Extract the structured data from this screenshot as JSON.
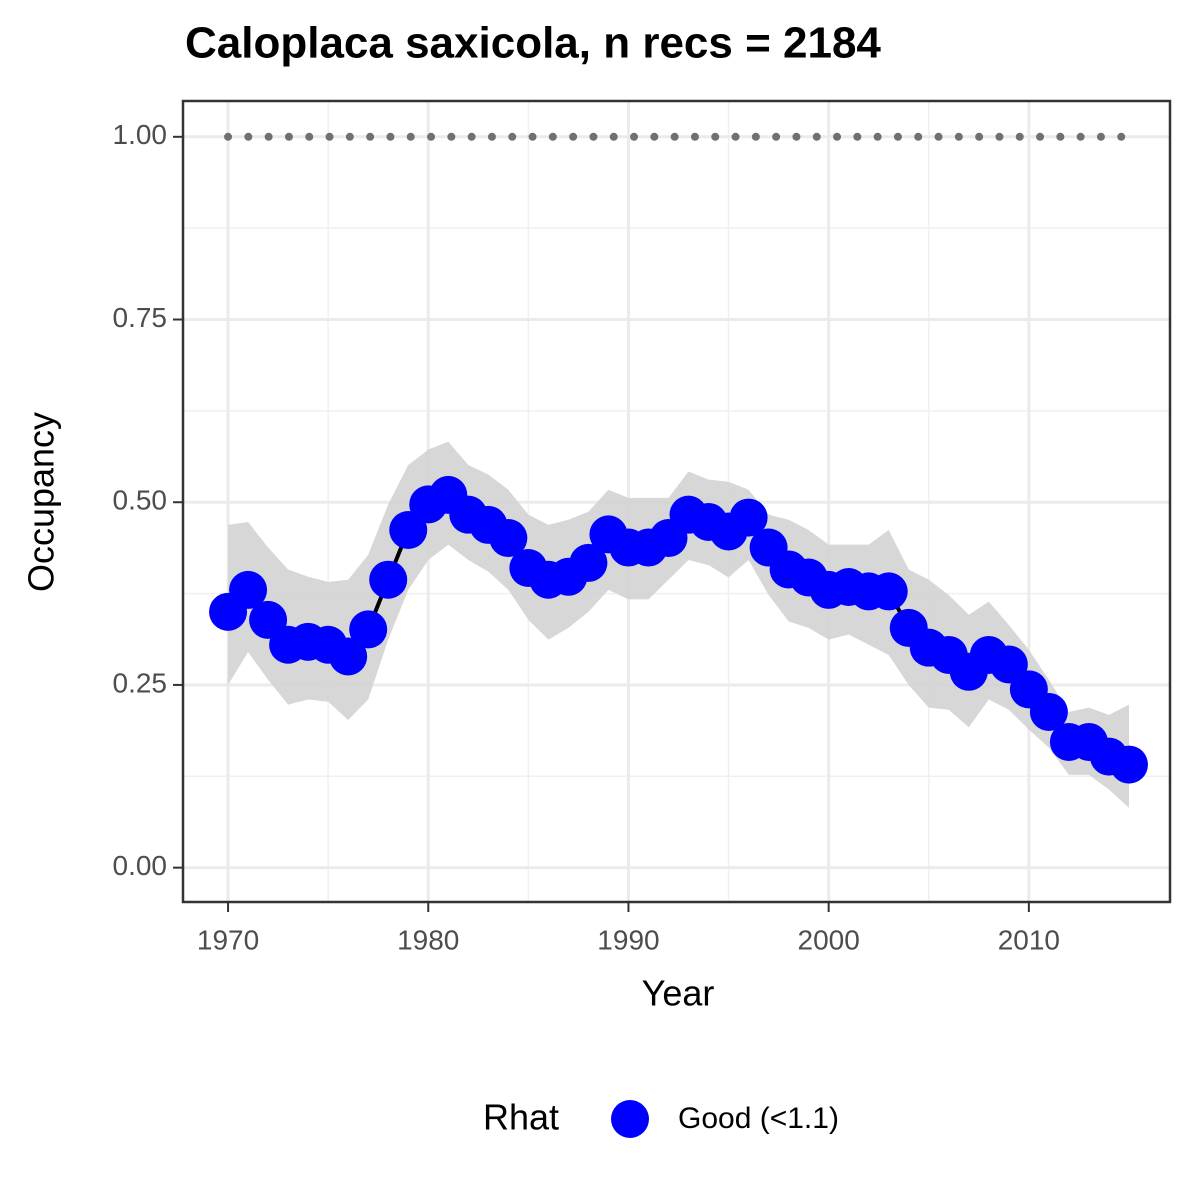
{
  "chart_data": {
    "type": "line",
    "title": "Caloplaca saxicola, n recs = 2184",
    "x_label": "Year",
    "y_label": "Occupancy",
    "legend_title": "Rhat",
    "x": [
      1970,
      1971,
      1972,
      1973,
      1974,
      1975,
      1976,
      1977,
      1978,
      1979,
      1980,
      1981,
      1982,
      1983,
      1984,
      1985,
      1986,
      1987,
      1988,
      1989,
      1990,
      1991,
      1992,
      1993,
      1994,
      1995,
      1996,
      1997,
      1998,
      1999,
      2000,
      2001,
      2002,
      2003,
      2004,
      2005,
      2006,
      2007,
      2008,
      2009,
      2010,
      2011,
      2012,
      2013,
      2014,
      2015
    ],
    "series": [
      {
        "name": "Good (<1.1)",
        "color": "#0000ff",
        "values": [
          0.35,
          0.38,
          0.339,
          0.305,
          0.309,
          0.305,
          0.289,
          0.326,
          0.394,
          0.462,
          0.497,
          0.51,
          0.483,
          0.469,
          0.451,
          0.41,
          0.394,
          0.398,
          0.417,
          0.456,
          0.438,
          0.438,
          0.451,
          0.483,
          0.473,
          0.46,
          0.479,
          0.438,
          0.408,
          0.397,
          0.38,
          0.384,
          0.378,
          0.378,
          0.328,
          0.301,
          0.291,
          0.268,
          0.291,
          0.278,
          0.244,
          0.213,
          0.172,
          0.172,
          0.152,
          0.141
        ],
        "lower": [
          0.25,
          0.295,
          0.257,
          0.223,
          0.23,
          0.227,
          0.202,
          0.23,
          0.312,
          0.38,
          0.421,
          0.442,
          0.421,
          0.405,
          0.38,
          0.339,
          0.312,
          0.328,
          0.35,
          0.38,
          0.367,
          0.367,
          0.394,
          0.421,
          0.414,
          0.397,
          0.421,
          0.373,
          0.337,
          0.328,
          0.312,
          0.319,
          0.305,
          0.291,
          0.25,
          0.219,
          0.216,
          0.192,
          0.23,
          0.216,
          0.189,
          0.164,
          0.127,
          0.127,
          0.107,
          0.082
        ],
        "upper": [
          0.469,
          0.473,
          0.438,
          0.408,
          0.398,
          0.391,
          0.394,
          0.428,
          0.497,
          0.551,
          0.572,
          0.583,
          0.551,
          0.538,
          0.517,
          0.483,
          0.469,
          0.476,
          0.487,
          0.517,
          0.506,
          0.506,
          0.506,
          0.542,
          0.531,
          0.528,
          0.517,
          0.483,
          0.476,
          0.462,
          0.442,
          0.442,
          0.442,
          0.462,
          0.408,
          0.394,
          0.373,
          0.346,
          0.364,
          0.332,
          0.298,
          0.257,
          0.213,
          0.219,
          0.209,
          0.223
        ]
      }
    ],
    "hline": 1,
    "ribbon_color": "#d3d3d3",
    "line_color": "#000000",
    "hline_color": "#707070",
    "xlim": [
      1967.75,
      2017.05
    ],
    "ylim": [
      -0.047,
      1.049
    ],
    "xticks": [
      1970,
      1980,
      1990,
      2000,
      2010
    ],
    "yticks": [
      {
        "value": 0,
        "label": "0.00"
      },
      {
        "value": 0.25,
        "label": "0.25"
      },
      {
        "value": 0.5,
        "label": "0.50"
      },
      {
        "value": 0.75,
        "label": "0.75"
      },
      {
        "value": 1,
        "label": "1.00"
      }
    ],
    "grid": true
  }
}
